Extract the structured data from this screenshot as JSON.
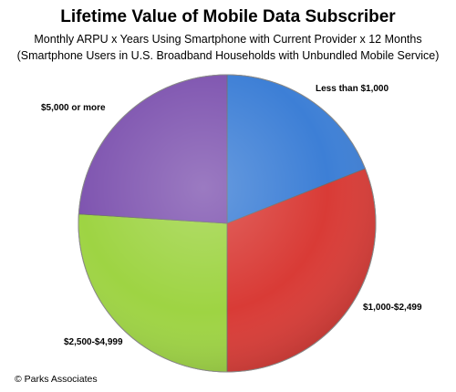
{
  "chart_data": {
    "type": "pie",
    "title": "Lifetime Value of Mobile Data Subscriber",
    "subtitle_lines": [
      "Monthly ARPU x Years Using Smartphone with Current Provider x 12 Months",
      "(Smartphone Users in U.S. Broadband Households with Unbundled Mobile Service)"
    ],
    "categories": [
      "Less than $1,000",
      "$1,000-$2,499",
      "$2,500-$4,999",
      "$5,000 or more"
    ],
    "values": [
      19,
      31,
      26,
      24
    ],
    "colors": [
      "#3d7fd6",
      "#d93b36",
      "#9ed443",
      "#7f55b0"
    ],
    "start_angle": "12 o'clock",
    "direction": "clockwise",
    "legend": "none (slice labels)"
  },
  "footer": {
    "source": "©  Parks Associates"
  }
}
